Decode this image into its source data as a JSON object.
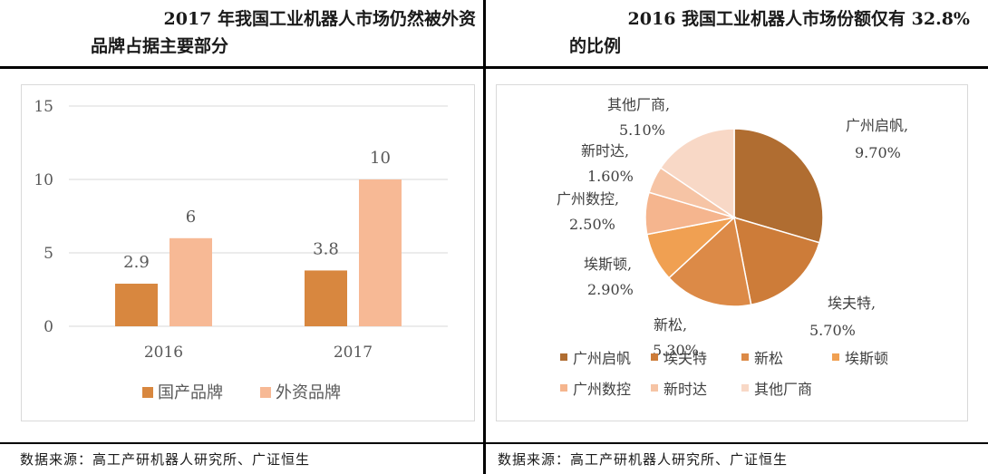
{
  "left_panel": {
    "title_line1": "2017 年我国工业机器人市场仍然被外资",
    "title_line2": "品牌占据主要部分",
    "source": "数据来源：高工产研机器人研究所、广证恒生"
  },
  "right_panel": {
    "title_line1": "2016 我国工业机器人市场份额仅有 32.8%",
    "title_line2": "的比例",
    "source": "数据来源：高工产研机器人研究所、广证恒生"
  },
  "chart_data": [
    {
      "type": "bar",
      "categories": [
        "2016",
        "2017"
      ],
      "series": [
        {
          "name": "国产品牌",
          "values": [
            2.9,
            3.8
          ],
          "value_labels": [
            "2.9",
            "3.8"
          ],
          "color": "#d8873f"
        },
        {
          "name": "外资品牌",
          "values": [
            6,
            10
          ],
          "value_labels": [
            "6",
            "10"
          ],
          "color": "#f7b995"
        }
      ],
      "ylim": [
        0,
        15
      ],
      "yticks": [
        "0",
        "5",
        "10",
        "15"
      ],
      "grid": true,
      "legend_position": "bottom"
    },
    {
      "type": "pie",
      "slices": [
        {
          "name": "广州启帆",
          "value": 9.7,
          "label": "9.70%",
          "color": "#b06d31"
        },
        {
          "name": "埃夫特",
          "value": 5.7,
          "label": "5.70%",
          "color": "#cd7c39"
        },
        {
          "name": "新松",
          "value": 5.3,
          "label": "5.30%",
          "color": "#dc8a47"
        },
        {
          "name": "埃斯顿",
          "value": 2.9,
          "label": "2.90%",
          "color": "#f0a052"
        },
        {
          "name": "广州数控",
          "value": 2.5,
          "label": "2.50%",
          "color": "#f5b58e"
        },
        {
          "name": "新时达",
          "value": 1.6,
          "label": "1.60%",
          "color": "#f6c4a5"
        },
        {
          "name": "其他厂商",
          "value": 5.1,
          "label": "5.10%",
          "color": "#f8d8c6"
        }
      ],
      "legend_position": "bottom"
    }
  ]
}
